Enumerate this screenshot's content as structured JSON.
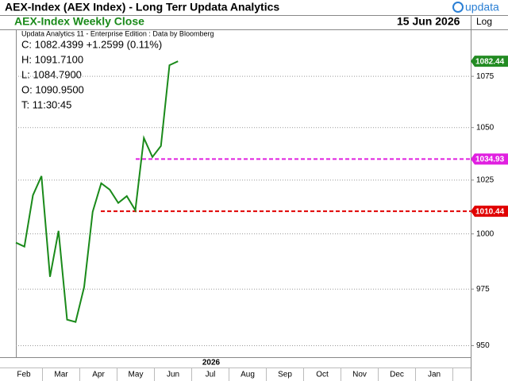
{
  "chart_data": {
    "type": "line",
    "title": "AEX-Index (AEX Index) - Long Terr  Updata Analytics",
    "brand": "updata",
    "date": "15 Jun 2026",
    "scale_label": "Log",
    "source": "Updata Analytics 11 - Enterprise Edition : Data by Bloomberg",
    "readout": [
      "C: 1082.4399  +1.2599 (0.11%)",
      "H: 1091.7100",
      "L: 1084.7900",
      "O: 1090.9500",
      "T: 11:30:45"
    ],
    "series": [
      {
        "name": "AEX-Index Weekly Close",
        "color": "#1a8a1a",
        "values": [
          996.0,
          994.2,
          1017.9,
          1026.9,
          980.5,
          1001.4,
          961.4,
          960.4,
          975.9,
          1010.2,
          1023.5,
          1020.5,
          1014.3,
          1017.5,
          1010.9,
          1045.0,
          1035.9,
          1041.2,
          1080.5,
          1082.44
        ]
      }
    ],
    "levels": [
      {
        "value": 1034.93,
        "color": "#e020e0"
      },
      {
        "value": 1010.44,
        "color": "#e00000"
      }
    ],
    "xlabel": "2026",
    "xticks": [
      "Feb",
      "Mar",
      "Apr",
      "May",
      "Jun",
      "Jul",
      "Aug",
      "Sep",
      "Oct",
      "Nov",
      "Dec",
      "Jan"
    ],
    "log_scale": true,
    "grid": true,
    "ylim": [
      945,
      1098
    ],
    "yticks": [
      950,
      975,
      1000,
      1025,
      1050,
      1075
    ]
  }
}
